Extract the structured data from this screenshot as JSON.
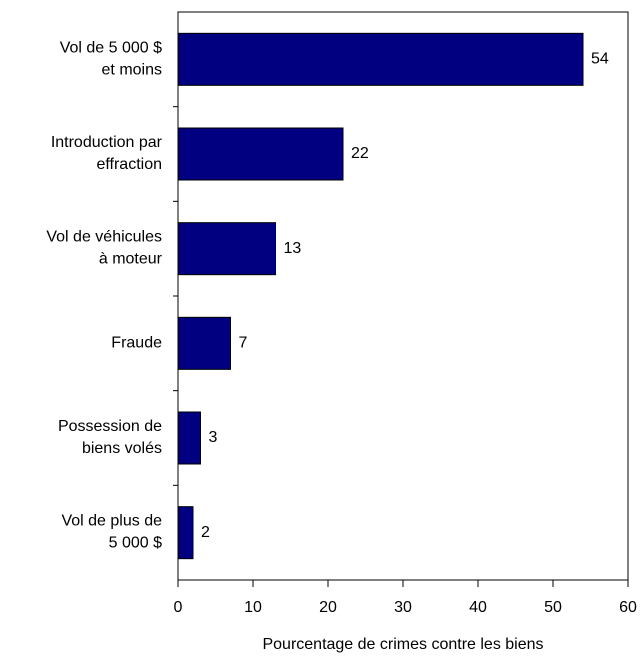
{
  "chart_data": {
    "type": "hbar",
    "categories": [
      "Vol de 5 000 $\net moins",
      "Introduction par\neffraction",
      "Vol de véhicules\nà moteur",
      "Fraude",
      "Possession de\nbiens volés",
      "Vol de plus de\n5 000 $"
    ],
    "values": [
      54,
      22,
      13,
      7,
      3,
      2
    ],
    "color": "#000080",
    "xlabel": "Pourcentage de crimes contre les biens",
    "xlim": [
      0,
      60
    ],
    "xticks": [
      0,
      10,
      20,
      30,
      40,
      50,
      60
    ]
  }
}
